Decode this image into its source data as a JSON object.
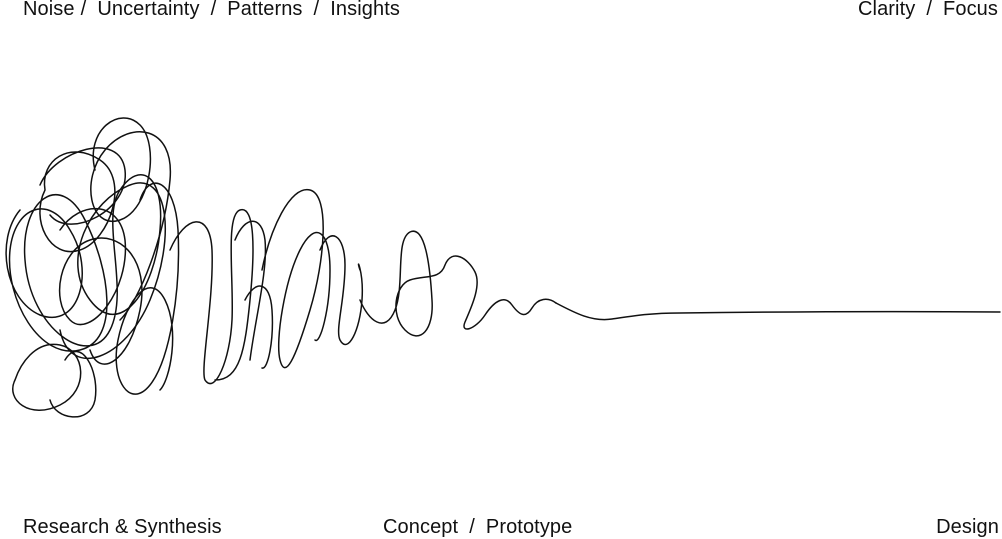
{
  "header": {
    "left": {
      "items": [
        "Noise",
        "Uncertainty",
        "Patterns",
        "Insights"
      ],
      "separator": "/"
    },
    "right": {
      "items": [
        "Clarity",
        "Focus"
      ],
      "separator": "/"
    }
  },
  "footer": {
    "left": "Research & Synthesis",
    "center": {
      "items": [
        "Concept",
        "Prototype"
      ],
      "separator": "/"
    },
    "right": "Design"
  },
  "colors": {
    "ink": "#111111",
    "background": "#ffffff"
  }
}
